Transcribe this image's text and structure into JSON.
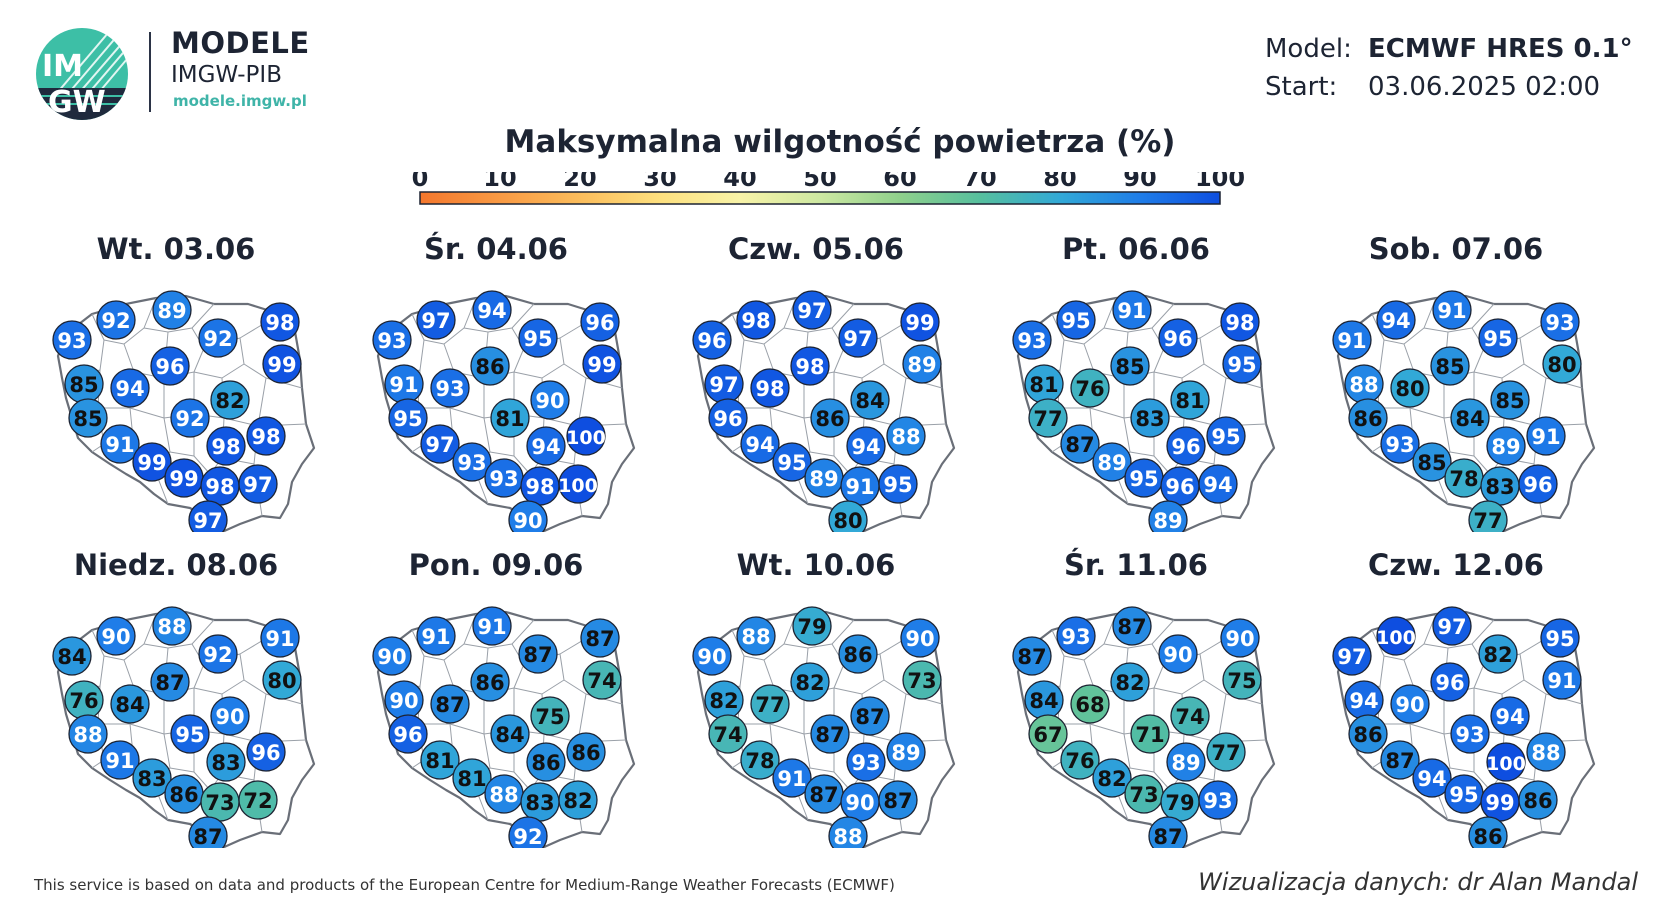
{
  "brand": {
    "logo_text_top": "IM",
    "logo_text_bottom": "GW",
    "title": "MODELE",
    "subtitle": "IMGW-PIB",
    "url": "modele.imgw.pl"
  },
  "model_info": {
    "model_label": "Model:",
    "model_value": "ECMWF HRES 0.1°",
    "start_label": "Start:",
    "start_value": "03.06.2025 02:00"
  },
  "title": "Maksymalna wilgotność powietrza (%)",
  "scale": {
    "ticks": [
      "0",
      "10",
      "20",
      "30",
      "40",
      "50",
      "60",
      "70",
      "80",
      "90",
      "100"
    ],
    "colors": [
      "#f4772d",
      "#f99a44",
      "#fbbd5c",
      "#fde07f",
      "#f8f3a8",
      "#cde8a2",
      "#8fd08c",
      "#56bf9e",
      "#32a9d7",
      "#1f7de8",
      "#0e4ee0"
    ]
  },
  "days": [
    {
      "label": "Wt. 03.06",
      "values": [
        93,
        92,
        89,
        92,
        98,
        85,
        96,
        99,
        94,
        82,
        85,
        92,
        91,
        98,
        98,
        99,
        99,
        98,
        97,
        97
      ]
    },
    {
      "label": "Śr. 04.06",
      "values": [
        93,
        97,
        94,
        95,
        96,
        91,
        86,
        99,
        93,
        90,
        95,
        81,
        97,
        94,
        100,
        93,
        93,
        98,
        100,
        90
      ]
    },
    {
      "label": "Czw. 05.06",
      "values": [
        96,
        98,
        97,
        97,
        99,
        97,
        98,
        89,
        98,
        84,
        96,
        86,
        94,
        94,
        88,
        95,
        89,
        91,
        95,
        80
      ]
    },
    {
      "label": "Pt. 06.06",
      "values": [
        93,
        95,
        91,
        96,
        98,
        81,
        85,
        95,
        76,
        81,
        77,
        83,
        87,
        96,
        95,
        89,
        95,
        96,
        94,
        89
      ]
    },
    {
      "label": "Sob. 07.06",
      "values": [
        91,
        94,
        91,
        95,
        93,
        88,
        85,
        80,
        80,
        85,
        86,
        84,
        93,
        89,
        91,
        85,
        78,
        83,
        96,
        77
      ]
    },
    {
      "label": "Niedz. 08.06",
      "values": [
        84,
        90,
        88,
        92,
        91,
        76,
        87,
        80,
        84,
        90,
        88,
        95,
        91,
        83,
        96,
        83,
        86,
        73,
        72,
        87
      ]
    },
    {
      "label": "Pon. 09.06",
      "values": [
        90,
        91,
        91,
        87,
        87,
        90,
        86,
        74,
        87,
        75,
        96,
        84,
        81,
        86,
        86,
        81,
        88,
        83,
        82,
        92
      ]
    },
    {
      "label": "Wt. 10.06",
      "values": [
        90,
        88,
        79,
        86,
        90,
        82,
        82,
        73,
        77,
        87,
        74,
        87,
        78,
        93,
        89,
        91,
        87,
        90,
        87,
        88
      ]
    },
    {
      "label": "Śr. 11.06",
      "values": [
        87,
        93,
        87,
        90,
        90,
        84,
        82,
        75,
        68,
        74,
        67,
        71,
        76,
        89,
        77,
        82,
        73,
        79,
        93,
        87
      ]
    },
    {
      "label": "Czw. 12.06",
      "values": [
        97,
        100,
        97,
        82,
        95,
        94,
        96,
        91,
        90,
        94,
        86,
        93,
        87,
        100,
        88,
        94,
        95,
        99,
        86,
        86
      ]
    }
  ],
  "footer": {
    "left": "This service is based on data and products of the European Centre for Medium-Range Weather Forecasts (ECMWF)",
    "right": "Wizualizacja danych: dr Alan Mandal"
  }
}
